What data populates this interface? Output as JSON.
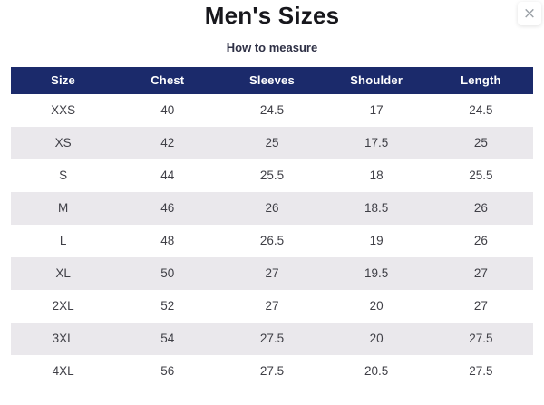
{
  "modal": {
    "title": "Men's Sizes",
    "subtitle": "How to measure",
    "close_icon": "×"
  },
  "table": {
    "columns": [
      "Size",
      "Chest",
      "Sleeves",
      "Shoulder",
      "Length"
    ],
    "rows": [
      [
        "XXS",
        "40",
        "24.5",
        "17",
        "24.5"
      ],
      [
        "XS",
        "42",
        "25",
        "17.5",
        "25"
      ],
      [
        "S",
        "44",
        "25.5",
        "18",
        "25.5"
      ],
      [
        "M",
        "46",
        "26",
        "18.5",
        "26"
      ],
      [
        "L",
        "48",
        "26.5",
        "19",
        "26"
      ],
      [
        "XL",
        "50",
        "27",
        "19.5",
        "27"
      ],
      [
        "2XL",
        "52",
        "27",
        "20",
        "27"
      ],
      [
        "3XL",
        "54",
        "27.5",
        "20",
        "27.5"
      ],
      [
        "4XL",
        "56",
        "27.5",
        "20.5",
        "27.5"
      ]
    ]
  },
  "colors": {
    "header_bg": "#1b2a6b",
    "header_text": "#ffffff",
    "stripe_bg": "#eae8ec",
    "cell_text": "#3f3f46",
    "title_text": "#17171c",
    "subtitle_text": "#2e3045",
    "close_icon_color": "#9aa0a6"
  }
}
